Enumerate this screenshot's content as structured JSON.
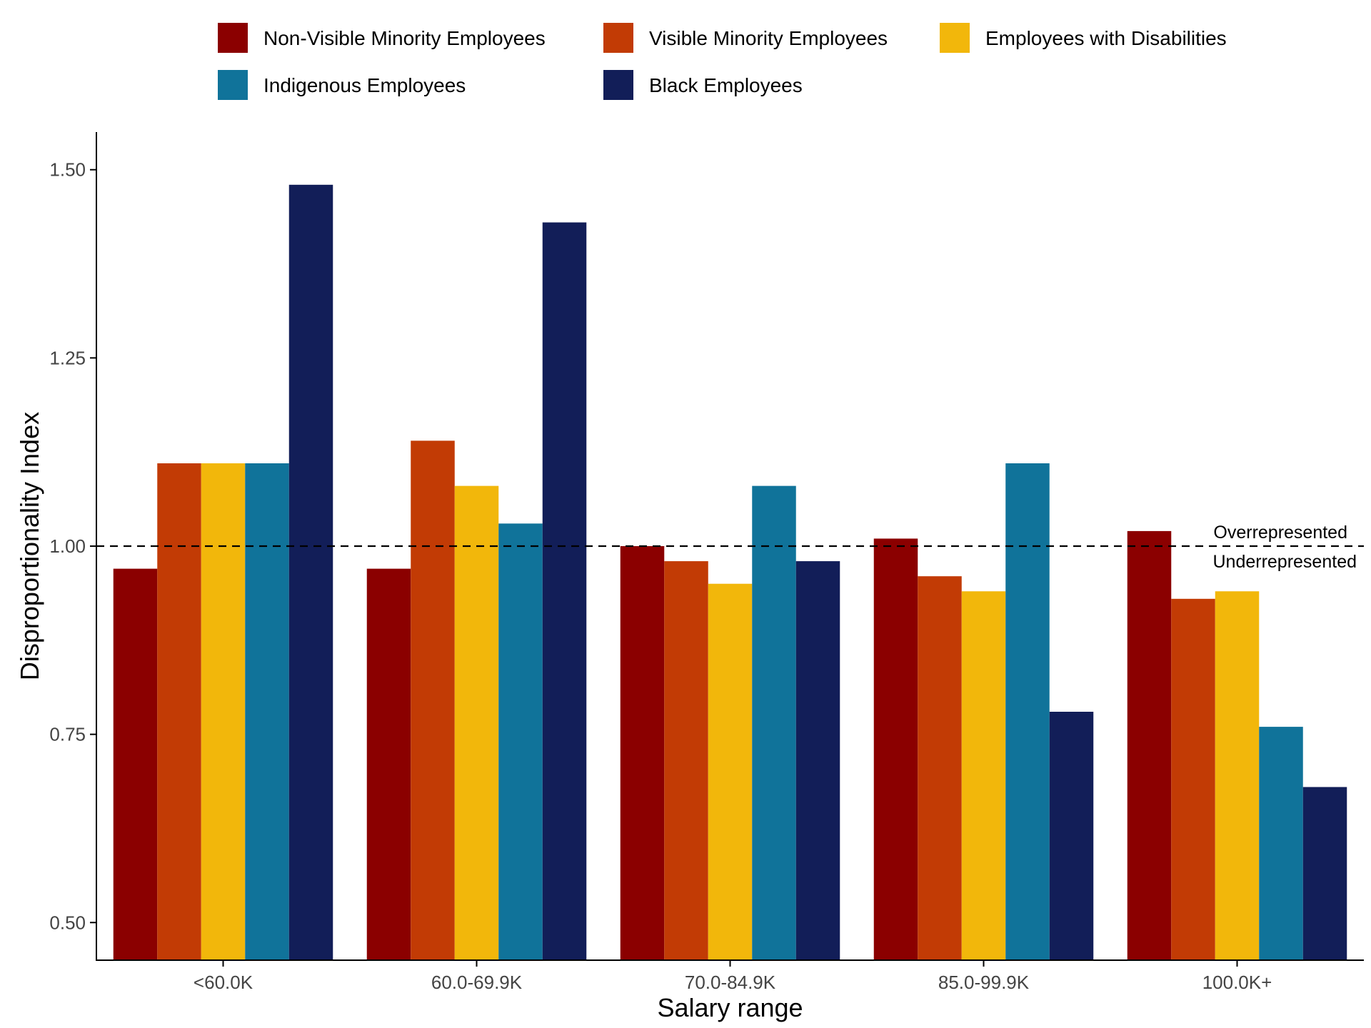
{
  "chart_data": {
    "type": "bar",
    "title": "",
    "xlabel": "Salary range",
    "ylabel": "Disproportionality Index",
    "categories": [
      "<60.0K",
      "60.0-69.9K",
      "70.0-84.9K",
      "85.0-99.9K",
      "100.0K+"
    ],
    "series": [
      {
        "name": "Non-Visible Minority Employees",
        "color": "#8B0000",
        "values": [
          0.97,
          0.97,
          1.0,
          1.01,
          1.02
        ]
      },
      {
        "name": "Visible Minority Employees",
        "color": "#C23B05",
        "values": [
          1.11,
          1.14,
          0.98,
          0.96,
          0.93
        ]
      },
      {
        "name": "Employees with Disabilities",
        "color": "#F2B70B",
        "values": [
          1.11,
          1.08,
          0.95,
          0.94,
          0.94
        ]
      },
      {
        "name": "Indigenous Employees",
        "color": "#10739A",
        "values": [
          1.11,
          1.03,
          1.08,
          1.11,
          0.76
        ]
      },
      {
        "name": "Black Employees",
        "color": "#121E58",
        "values": [
          1.48,
          1.43,
          0.98,
          0.78,
          0.68
        ]
      }
    ],
    "ylim": [
      0.45,
      1.55
    ],
    "yticks": [
      0.5,
      0.75,
      1.0,
      1.25,
      1.5
    ],
    "ytick_labels": [
      "0.50",
      "0.75",
      "1.00",
      "1.25",
      "1.50"
    ],
    "reference_line": {
      "value": 1.0,
      "style": "dashed",
      "label_above": "Overrepresented",
      "label_below": "Underrepresented"
    },
    "legend_position": "top",
    "grid": false
  }
}
